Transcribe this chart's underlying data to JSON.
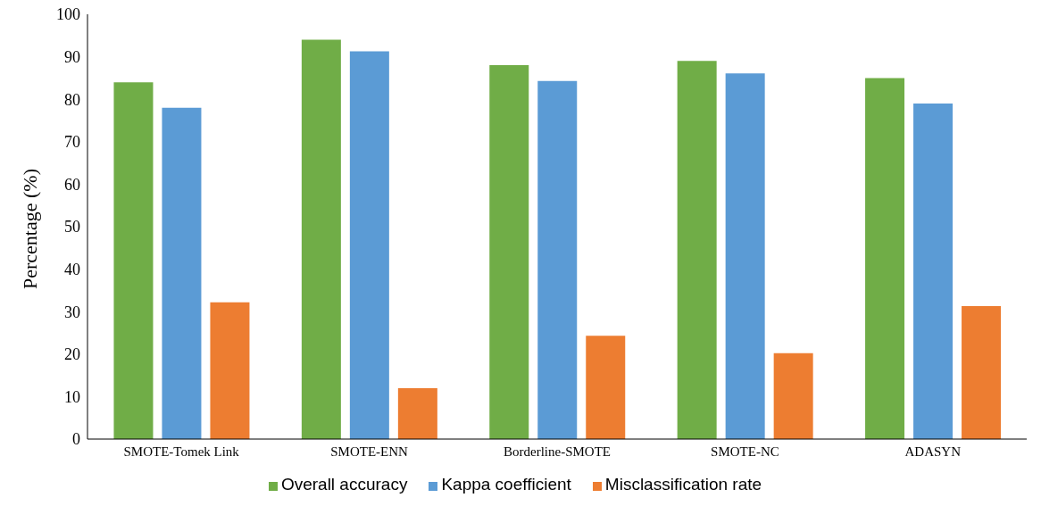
{
  "chart_data": {
    "type": "bar",
    "ylabel": "Percentage (%)",
    "categories": [
      "SMOTE-Tomek Link",
      "SMOTE-ENN",
      "Borderline-SMOTE",
      "SMOTE-NC",
      "ADASYN"
    ],
    "series": [
      {
        "name": "Overall accuracy",
        "color": "#70ad47",
        "values": [
          84,
          94,
          88,
          89,
          85
        ]
      },
      {
        "name": "Kappa coefficient",
        "color": "#5b9bd5",
        "values": [
          78,
          91.3,
          84.3,
          86.1,
          79
        ]
      },
      {
        "name": "Misclassification rate",
        "color": "#ed7d31",
        "values": [
          32.2,
          12,
          24.3,
          20.2,
          31.3
        ]
      }
    ],
    "ylim": [
      0,
      100
    ],
    "yticks": [
      0,
      10,
      20,
      30,
      40,
      50,
      60,
      70,
      80,
      90,
      100
    ],
    "grid": false,
    "legend": "bottom"
  }
}
